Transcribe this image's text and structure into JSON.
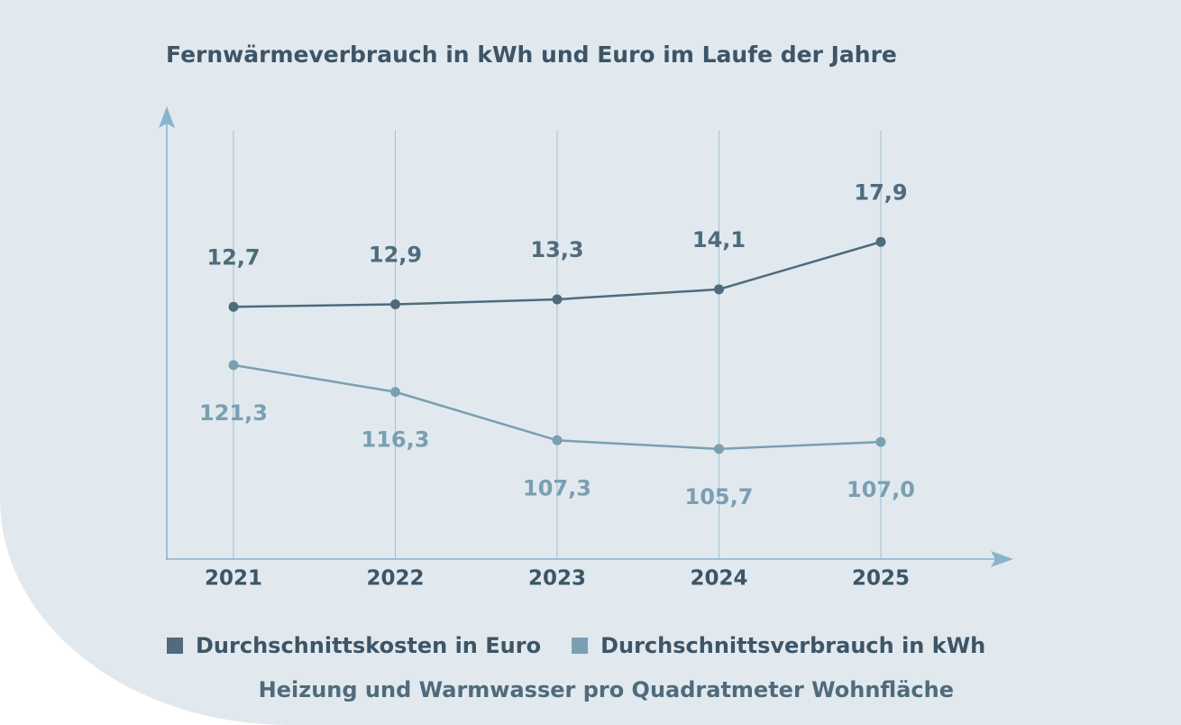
{
  "chart_data": {
    "type": "line",
    "title": "Fernwärmeverbrauch in kWh und Euro im Laufe der Jahre",
    "note": "Heizung und Warmwasser pro Quadratmeter Wohnfläche",
    "categories": [
      "2021",
      "2022",
      "2023",
      "2024",
      "2025"
    ],
    "series": [
      {
        "name": "Durchschnittskosten in Euro",
        "color": "#4f6b7c",
        "axis": "y2",
        "values": [
          12.7,
          12.9,
          13.3,
          14.1,
          17.9
        ],
        "value_labels": [
          "12,7",
          "12,9",
          "13,3",
          "14,1",
          "17,9"
        ]
      },
      {
        "name": "Durchschnittsverbrauch in kWh",
        "color": "#7a9fb2",
        "values": [
          121.3,
          116.3,
          107.3,
          105.7,
          107.0
        ],
        "value_labels": [
          "121,3",
          "116,3",
          "107,3",
          "105,7",
          "107,0"
        ]
      }
    ],
    "ylim": [
      85.2,
      164.9
    ],
    "y2lim": [
      -7.5,
      26.8
    ],
    "grid": true
  }
}
